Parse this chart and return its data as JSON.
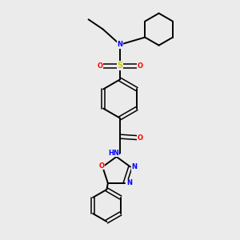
{
  "bg_color": "#ebebeb",
  "atom_colors": {
    "C": "#000000",
    "N": "#0000ff",
    "O": "#ff0000",
    "S": "#cccc00",
    "H": "#008080"
  },
  "bond_color": "#000000",
  "figsize": [
    3.0,
    3.0
  ],
  "dpi": 100
}
